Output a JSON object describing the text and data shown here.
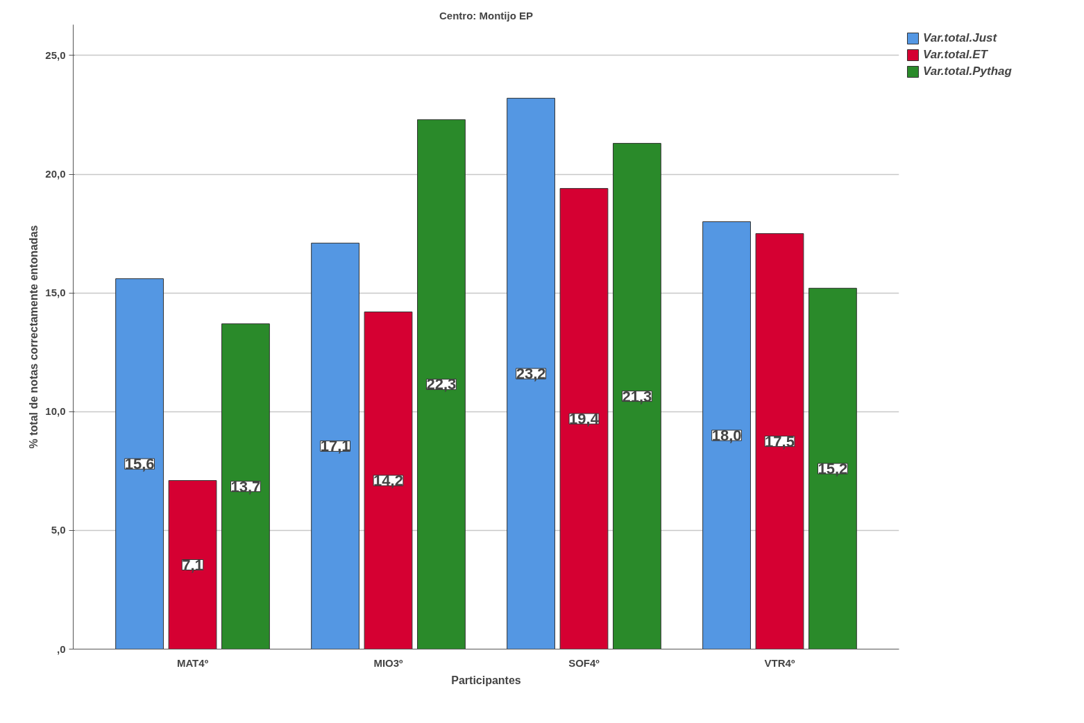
{
  "chart_data": {
    "type": "bar",
    "title": "Centro: Montijo EP",
    "xlabel": "Participantes",
    "ylabel": "% total de notas correctamente entonadas",
    "categories": [
      "MAT4º",
      "MIO3º",
      "SOF4º",
      "VTR4º"
    ],
    "series": [
      {
        "name": "Var.total.Just",
        "color": "#5497e3",
        "values": [
          15.6,
          17.1,
          23.2,
          18.0
        ],
        "value_labels": [
          "15,6",
          "17,1",
          "23,2",
          "18,0"
        ]
      },
      {
        "name": "Var.total.ET",
        "color": "#d50032",
        "values": [
          7.1,
          14.2,
          19.4,
          17.5
        ],
        "value_labels": [
          "7,1",
          "14,2",
          "19,4",
          "17,5"
        ]
      },
      {
        "name": "Var.total.Pythag",
        "color": "#2a8a2a",
        "values": [
          13.7,
          22.3,
          21.3,
          15.2
        ],
        "value_labels": [
          "13,7",
          "22,3",
          "21,3",
          "15,2"
        ]
      }
    ],
    "ylim": [
      0,
      26.3
    ],
    "yticks": [
      {
        "value": 0,
        "label": ",0"
      },
      {
        "value": 5,
        "label": "5,0"
      },
      {
        "value": 10,
        "label": "10,0"
      },
      {
        "value": 15,
        "label": "15,0"
      },
      {
        "value": 20,
        "label": "20,0"
      },
      {
        "value": 25,
        "label": "25,0"
      }
    ],
    "grid": "y",
    "legend": "top right"
  }
}
